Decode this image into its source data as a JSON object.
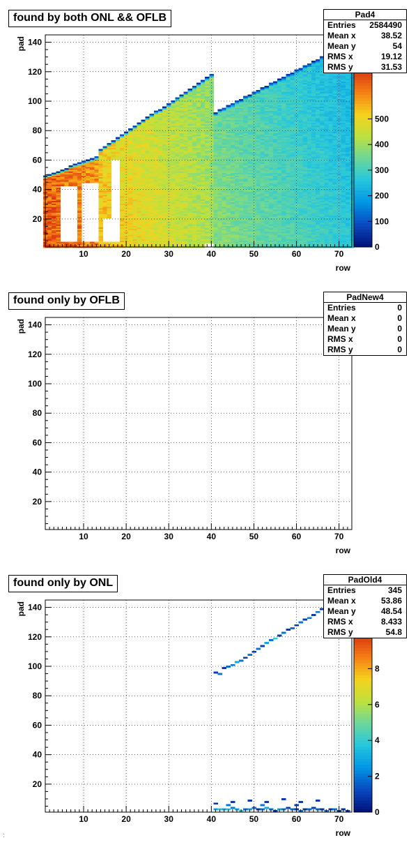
{
  "chart_data": [
    {
      "type": "heatmap",
      "title": "found by both ONL && OFLB",
      "xlabel": "row",
      "ylabel": "pad",
      "xlim": [
        1,
        73
      ],
      "ylim": [
        1,
        145
      ],
      "xticks": [
        10,
        20,
        30,
        40,
        50,
        60,
        70
      ],
      "yticks": [
        20,
        40,
        60,
        80,
        100,
        120,
        140
      ],
      "zlim": [
        0,
        700
      ],
      "zticks": [
        0,
        100,
        200,
        300,
        400,
        500
      ],
      "palette": "rainbow",
      "grid": true,
      "legend": "top-right",
      "stats": {
        "name": "Pad4",
        "rows": [
          {
            "label": "Entries",
            "value": "2584490"
          },
          {
            "label": "Mean x",
            "value": "38.52"
          },
          {
            "label": "Mean y",
            "value": "54"
          },
          {
            "label": "RMS x",
            "value": "19.12"
          },
          {
            "label": "RMS y",
            "value": "31.53"
          }
        ]
      },
      "pattern": {
        "sections": [
          {
            "row_start": 1,
            "row_end": 13,
            "pad_low": 49,
            "pad_high": 62,
            "z_low": 650,
            "z_high": 600
          },
          {
            "row_start": 14,
            "row_end": 40,
            "pad_low": 67,
            "pad_high": 118,
            "z_low": 540,
            "z_high": 420
          },
          {
            "row_start": 41,
            "row_end": 73,
            "pad_low": 92,
            "pad_high": 140,
            "z_low": 380,
            "z_high": 270
          }
        ],
        "holes": [
          {
            "row_start": 5,
            "row_end": 8,
            "pad_low": 5,
            "pad_high": 42
          },
          {
            "row_start": 10,
            "row_end": 13,
            "pad_low": 5,
            "pad_high": 44
          },
          {
            "row_start": 15,
            "row_end": 16,
            "pad_low": 5,
            "pad_high": 20
          },
          {
            "row_start": 17,
            "row_end": 18,
            "pad_low": 5,
            "pad_high": 60
          },
          {
            "row_start": 39,
            "row_end": 40,
            "pad_low": 1,
            "pad_high": 3
          }
        ]
      }
    },
    {
      "type": "heatmap",
      "title": "found only by OFLB",
      "xlabel": "row",
      "ylabel": "pad",
      "xlim": [
        1,
        73
      ],
      "ylim": [
        1,
        145
      ],
      "xticks": [
        10,
        20,
        30,
        40,
        50,
        60,
        70
      ],
      "yticks": [
        20,
        40,
        60,
        80,
        100,
        120,
        140
      ],
      "grid": true,
      "legend": "top-right",
      "stats": {
        "name": "PadNew4",
        "rows": [
          {
            "label": "Entries",
            "value": "0"
          },
          {
            "label": "Mean x",
            "value": "0"
          },
          {
            "label": "Mean y",
            "value": "0"
          },
          {
            "label": "RMS x",
            "value": "0"
          },
          {
            "label": "RMS y",
            "value": "0"
          }
        ]
      }
    },
    {
      "type": "heatmap",
      "title": "found only by ONL",
      "xlabel": "row",
      "ylabel": "pad",
      "xlim": [
        1,
        73
      ],
      "ylim": [
        1,
        145
      ],
      "xticks": [
        10,
        20,
        30,
        40,
        50,
        60,
        70
      ],
      "yticks": [
        20,
        40,
        60,
        80,
        100,
        120,
        140
      ],
      "zlim": [
        0,
        10
      ],
      "zticks": [
        0,
        2,
        4,
        6,
        8
      ],
      "palette": "rainbow",
      "grid": true,
      "legend": "top-right",
      "stats": {
        "name": "PadOld4",
        "rows": [
          {
            "label": "Entries",
            "value": "345"
          },
          {
            "label": "Mean x",
            "value": "53.86"
          },
          {
            "label": "Mean y",
            "value": "48.54"
          },
          {
            "label": "RMS x",
            "value": "8.433"
          },
          {
            "label": "RMS y",
            "value": "54.8"
          }
        ]
      },
      "cells": [
        [
          41,
          96,
          1
        ],
        [
          42,
          95,
          2
        ],
        [
          43,
          99,
          1
        ],
        [
          44,
          100,
          2
        ],
        [
          45,
          101,
          2
        ],
        [
          46,
          103,
          3
        ],
        [
          47,
          104,
          2
        ],
        [
          48,
          106,
          1
        ],
        [
          49,
          108,
          2
        ],
        [
          50,
          110,
          1
        ],
        [
          51,
          112,
          2
        ],
        [
          52,
          114,
          1
        ],
        [
          53,
          116,
          3
        ],
        [
          54,
          118,
          2
        ],
        [
          55,
          119,
          4
        ],
        [
          56,
          121,
          1
        ],
        [
          57,
          123,
          2
        ],
        [
          58,
          125,
          1
        ],
        [
          59,
          126,
          2
        ],
        [
          60,
          128,
          1
        ],
        [
          61,
          130,
          2
        ],
        [
          62,
          132,
          1
        ],
        [
          63,
          133,
          2
        ],
        [
          64,
          135,
          1
        ],
        [
          65,
          137,
          2
        ],
        [
          66,
          139,
          1
        ],
        [
          67,
          141,
          1
        ],
        [
          41,
          3,
          3
        ],
        [
          42,
          3,
          4
        ],
        [
          43,
          3,
          3
        ],
        [
          44,
          3,
          4
        ],
        [
          45,
          4,
          2
        ],
        [
          46,
          3,
          3
        ],
        [
          47,
          2,
          4
        ],
        [
          48,
          3,
          2
        ],
        [
          49,
          3,
          3
        ],
        [
          50,
          4,
          2
        ],
        [
          51,
          3,
          1
        ],
        [
          52,
          3,
          2
        ],
        [
          53,
          4,
          3
        ],
        [
          54,
          3,
          2
        ],
        [
          55,
          2,
          1
        ],
        [
          56,
          3,
          3
        ],
        [
          57,
          3,
          2
        ],
        [
          58,
          4,
          1
        ],
        [
          59,
          3,
          2
        ],
        [
          60,
          3,
          1
        ],
        [
          61,
          2,
          2
        ],
        [
          62,
          3,
          1
        ],
        [
          63,
          3,
          2
        ],
        [
          64,
          4,
          1
        ],
        [
          65,
          3,
          2
        ],
        [
          66,
          3,
          1
        ],
        [
          67,
          2,
          2
        ],
        [
          68,
          3,
          1
        ],
        [
          69,
          3,
          2
        ],
        [
          70,
          2,
          1
        ],
        [
          71,
          3,
          1
        ],
        [
          72,
          2,
          1
        ],
        [
          41,
          7,
          1
        ],
        [
          45,
          8,
          1
        ],
        [
          49,
          9,
          1
        ],
        [
          53,
          8,
          1
        ],
        [
          57,
          10,
          1
        ],
        [
          61,
          8,
          1
        ],
        [
          65,
          9,
          1
        ],
        [
          44,
          6,
          2
        ],
        [
          52,
          6,
          2
        ],
        [
          60,
          6,
          1
        ]
      ]
    }
  ],
  "footer_mark": ":"
}
